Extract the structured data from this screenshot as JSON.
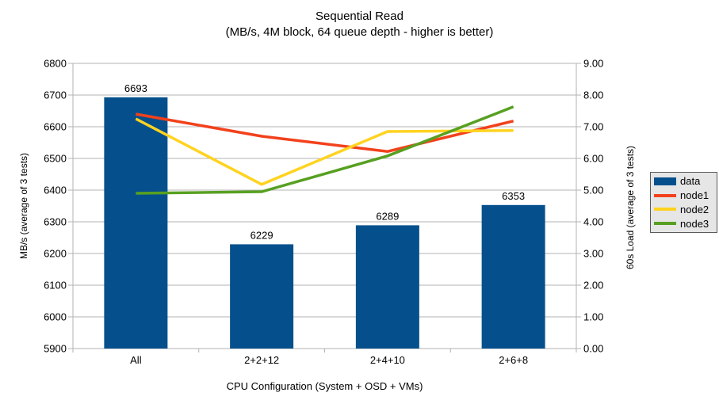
{
  "title": {
    "line1": "Sequential Read",
    "line2": "(MB/s, 4M block, 64 queue depth - higher is better)"
  },
  "chart_data": {
    "type": "combo-bar-line",
    "categories": [
      "All",
      "2+2+12",
      "2+4+10",
      "2+6+8"
    ],
    "bar_series": {
      "name": "data",
      "axis": "left",
      "color": "#05508C",
      "values": [
        6693,
        6229,
        6289,
        6353
      ],
      "labels": [
        "6693",
        "6229",
        "6289",
        "6353"
      ]
    },
    "line_series": [
      {
        "name": "node1",
        "axis": "right",
        "color": "#F2411C",
        "values": [
          7.4,
          6.7,
          6.22,
          7.18
        ]
      },
      {
        "name": "node2",
        "axis": "right",
        "color": "#FFD320",
        "values": [
          7.25,
          5.18,
          6.85,
          6.88
        ]
      },
      {
        "name": "node3",
        "axis": "right",
        "color": "#57A021",
        "values": [
          4.9,
          4.95,
          6.08,
          7.63
        ]
      }
    ],
    "left_axis": {
      "label": "MB/s (average of 3 tests)",
      "min": 5900,
      "max": 6800,
      "step": 100,
      "tick_labels": [
        "5900",
        "6000",
        "6100",
        "6200",
        "6300",
        "6400",
        "6500",
        "6600",
        "6700",
        "6800"
      ]
    },
    "right_axis": {
      "label": "60s Load (average of 3 tests)",
      "min": 0,
      "max": 9,
      "step": 1,
      "decimals": 2,
      "tick_labels": [
        "0.00",
        "1.00",
        "2.00",
        "3.00",
        "4.00",
        "5.00",
        "6.00",
        "7.00",
        "8.00",
        "9.00"
      ]
    },
    "x_axis": {
      "label": "CPU Configuration (System + OSD + VMs)"
    },
    "style": {
      "grid_color": "#B3B3B3",
      "axis_color": "#B3B3B3",
      "text_color": "#000000",
      "legend_bg": "#E6E6E6",
      "legend_border": "#5B5B5B",
      "grid_on": true,
      "legend_position": "right"
    }
  }
}
